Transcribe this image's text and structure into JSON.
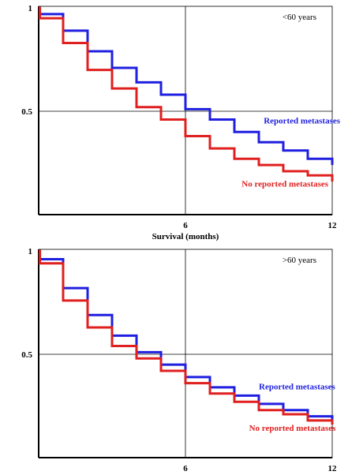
{
  "chart_data": [
    {
      "type": "line",
      "annotation": "<60 years",
      "xlabel": "Survival (months)",
      "ylabel": "",
      "xlim": [
        0,
        12
      ],
      "ylim": [
        0,
        1
      ],
      "x_ticks": [
        {
          "value": 6,
          "label": "6"
        },
        {
          "value": 12,
          "label": "12"
        }
      ],
      "y_ticks": [
        {
          "value": 1,
          "label": "1"
        },
        {
          "value": 0.5,
          "label": "0.5"
        }
      ],
      "grid": {
        "x": [
          6
        ],
        "y": [
          0.5
        ]
      },
      "series": [
        {
          "name": "Reported metastases",
          "color": "#1f1fe0",
          "x": [
            0,
            0.05,
            1,
            2,
            3,
            4,
            5,
            6,
            7,
            8,
            9,
            10,
            11,
            12
          ],
          "y": [
            1.0,
            0.97,
            0.89,
            0.79,
            0.71,
            0.64,
            0.58,
            0.51,
            0.46,
            0.4,
            0.35,
            0.31,
            0.27,
            0.24
          ]
        },
        {
          "name": "No reported metastases",
          "color": "#e01f1f",
          "x": [
            0,
            0.05,
            1,
            2,
            3,
            4,
            5,
            6,
            7,
            8,
            9,
            10,
            11,
            12
          ],
          "y": [
            1.0,
            0.95,
            0.83,
            0.7,
            0.61,
            0.52,
            0.46,
            0.38,
            0.32,
            0.27,
            0.24,
            0.21,
            0.19,
            0.16
          ]
        }
      ],
      "series_labels": [
        {
          "text": "Reported metastases",
          "x": 9.2,
          "y": 0.44
        },
        {
          "text": "No reported metastases",
          "x": 8.3,
          "y": 0.135
        }
      ]
    },
    {
      "type": "line",
      "annotation": ">60 years",
      "xlabel": "",
      "ylabel": "",
      "xlim": [
        0,
        12
      ],
      "ylim": [
        0,
        1
      ],
      "x_ticks": [
        {
          "value": 6,
          "label": "6"
        },
        {
          "value": 12,
          "label": "12"
        }
      ],
      "y_ticks": [
        {
          "value": 1,
          "label": "1"
        },
        {
          "value": 0.5,
          "label": "0.5"
        }
      ],
      "grid": {
        "x": [
          6
        ],
        "y": [
          0.5
        ]
      },
      "series": [
        {
          "name": "Reported metastases",
          "color": "#1f1fe0",
          "x": [
            0,
            0.05,
            1,
            2,
            3,
            4,
            5,
            6,
            7,
            8,
            9,
            10,
            11,
            12
          ],
          "y": [
            1.0,
            0.96,
            0.82,
            0.69,
            0.59,
            0.51,
            0.45,
            0.39,
            0.34,
            0.3,
            0.26,
            0.23,
            0.2,
            0.18
          ]
        },
        {
          "name": "No reported metastases",
          "color": "#e01f1f",
          "x": [
            0,
            0.05,
            1,
            2,
            3,
            4,
            5,
            6,
            7,
            8,
            9,
            10,
            11,
            12
          ],
          "y": [
            1.0,
            0.94,
            0.76,
            0.63,
            0.54,
            0.48,
            0.42,
            0.36,
            0.31,
            0.27,
            0.23,
            0.21,
            0.18,
            0.16
          ]
        }
      ],
      "series_labels": [
        {
          "text": "Reported metastases",
          "x": 9.0,
          "y": 0.33
        },
        {
          "text": "No reported metastases",
          "x": 8.6,
          "y": 0.13
        }
      ]
    }
  ]
}
